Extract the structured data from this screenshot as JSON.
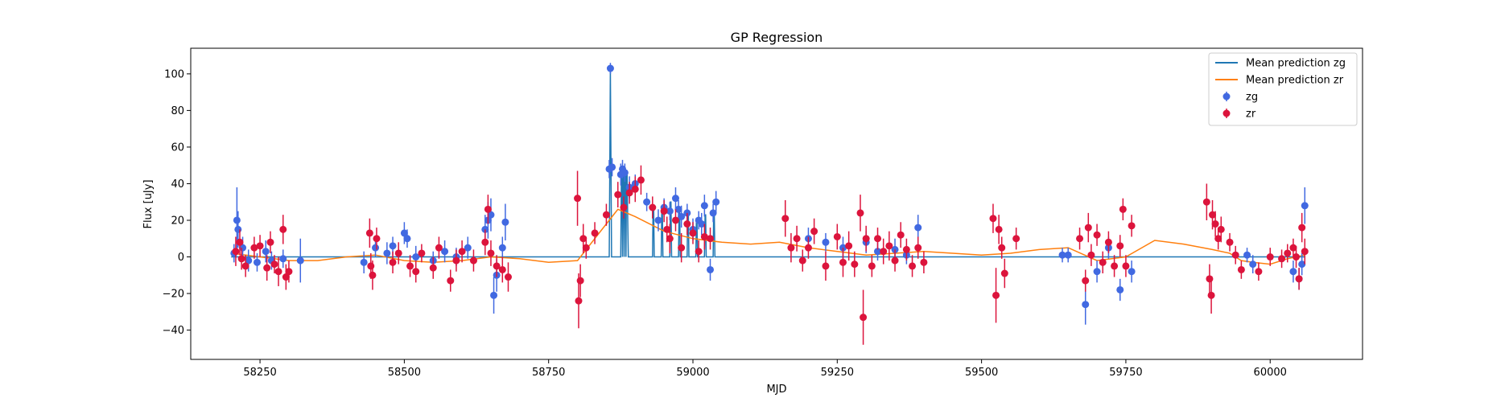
{
  "chart_data": {
    "type": "line",
    "title": "GP Regression",
    "xlabel": "MJD",
    "ylabel": "Flux [uJy]",
    "xlim": [
      58130,
      60160
    ],
    "ylim": [
      -56,
      114
    ],
    "xticks": [
      58250,
      58500,
      58750,
      59000,
      59250,
      59500,
      59750,
      60000
    ],
    "yticks": [
      -40,
      -20,
      0,
      20,
      40,
      60,
      80,
      100
    ],
    "grid": false,
    "legend_placement": "top-right",
    "colors": {
      "mean_zg": "#1f77b4",
      "mean_zr": "#ff7f0e",
      "zg": "#4169e1",
      "zr": "#dc143c"
    },
    "legend": [
      {
        "label": "Mean prediction zg",
        "kind": "line",
        "color": "#1f77b4"
      },
      {
        "label": "Mean prediction zr",
        "kind": "line",
        "color": "#ff7f0e"
      },
      {
        "label": "zg",
        "kind": "marker",
        "color": "#4169e1"
      },
      {
        "label": "zr",
        "kind": "marker",
        "color": "#dc143c"
      }
    ],
    "series": [
      {
        "name": "Mean prediction zg",
        "kind": "line",
        "x": [
          58200,
          58855,
          58856,
          58857,
          58858,
          58859,
          58860,
          58875,
          58876,
          58877,
          58878,
          58879,
          58880,
          58881,
          58882,
          58883,
          58884,
          58885,
          58886,
          58887,
          58888,
          58930,
          58931,
          58932,
          58933,
          58934,
          58945,
          58946,
          58947,
          58948,
          58949,
          58960,
          58961,
          58962,
          58963,
          58964,
          58975,
          58976,
          58977,
          58978,
          58979,
          58990,
          58991,
          58992,
          58993,
          58994,
          59005,
          59006,
          59007,
          59008,
          59009,
          59020,
          59021,
          59022,
          59023,
          59024,
          59035,
          59036,
          59037,
          59038,
          59039,
          60060
        ],
        "y": [
          0,
          0,
          48,
          103,
          48,
          0,
          0,
          0,
          45,
          45,
          0,
          47,
          47,
          0,
          45,
          45,
          0,
          46,
          46,
          20,
          0,
          0,
          28,
          28,
          0,
          0,
          0,
          27,
          27,
          0,
          0,
          0,
          30,
          30,
          0,
          0,
          0,
          27,
          27,
          0,
          0,
          0,
          24,
          24,
          0,
          0,
          0,
          21,
          21,
          0,
          0,
          0,
          23,
          23,
          0,
          0,
          0,
          25,
          25,
          0,
          0,
          0
        ]
      },
      {
        "name": "Mean prediction zr",
        "kind": "line",
        "x": [
          58200,
          58250,
          58300,
          58350,
          58400,
          58450,
          58500,
          58550,
          58600,
          58650,
          58700,
          58750,
          58800,
          58840,
          58870,
          58900,
          58950,
          59000,
          59050,
          59100,
          59150,
          59200,
          59250,
          59300,
          59350,
          59400,
          59450,
          59500,
          59550,
          59600,
          59650,
          59700,
          59750,
          59800,
          59850,
          59900,
          59930,
          59950,
          59970,
          60000,
          60030,
          60060
        ],
        "y": [
          2,
          0,
          -2,
          -2,
          0,
          1,
          -2,
          -3,
          -2,
          0,
          -1,
          -3,
          -2,
          14,
          26,
          22,
          14,
          10,
          8,
          7,
          8,
          5,
          3,
          1,
          2,
          3,
          2,
          1,
          2,
          4,
          5,
          -2,
          0,
          9,
          7,
          4,
          2,
          -2,
          -3,
          -4,
          -1,
          1
        ]
      },
      {
        "name": "zg",
        "kind": "errorbar",
        "points": [
          [
            58205,
            2,
            5
          ],
          [
            58210,
            20,
            18
          ],
          [
            58212,
            15,
            10
          ],
          [
            58220,
            5,
            6
          ],
          [
            58230,
            -2,
            6
          ],
          [
            58245,
            -3,
            5
          ],
          [
            58260,
            3,
            6
          ],
          [
            58270,
            -2,
            5
          ],
          [
            58290,
            -1,
            5
          ],
          [
            58320,
            -2,
            12
          ],
          [
            58430,
            -3,
            6
          ],
          [
            58450,
            5,
            5
          ],
          [
            58470,
            2,
            6
          ],
          [
            58480,
            6,
            5
          ],
          [
            58500,
            13,
            6
          ],
          [
            58505,
            10,
            5
          ],
          [
            58520,
            0,
            6
          ],
          [
            58550,
            -2,
            5
          ],
          [
            58570,
            3,
            6
          ],
          [
            58590,
            0,
            5
          ],
          [
            58610,
            5,
            6
          ],
          [
            58640,
            15,
            8
          ],
          [
            58645,
            20,
            10
          ],
          [
            58650,
            23,
            9
          ],
          [
            58655,
            -21,
            10
          ],
          [
            58660,
            -10,
            9
          ],
          [
            58670,
            5,
            6
          ],
          [
            58675,
            19,
            10
          ],
          [
            58855,
            48,
            5
          ],
          [
            58857,
            103,
            3
          ],
          [
            58860,
            49,
            5
          ],
          [
            58875,
            45,
            6
          ],
          [
            58878,
            48,
            5
          ],
          [
            58882,
            46,
            5
          ],
          [
            58890,
            38,
            6
          ],
          [
            58900,
            40,
            5
          ],
          [
            58920,
            30,
            5
          ],
          [
            58940,
            20,
            6
          ],
          [
            58950,
            27,
            5
          ],
          [
            58960,
            25,
            5
          ],
          [
            58970,
            32,
            6
          ],
          [
            58975,
            26,
            5
          ],
          [
            58980,
            22,
            6
          ],
          [
            58990,
            24,
            5
          ],
          [
            59000,
            15,
            6
          ],
          [
            59010,
            20,
            5
          ],
          [
            59015,
            18,
            6
          ],
          [
            59020,
            28,
            6
          ],
          [
            59030,
            -7,
            6
          ],
          [
            59035,
            24,
            5
          ],
          [
            59040,
            30,
            6
          ],
          [
            59200,
            10,
            6
          ],
          [
            59230,
            8,
            5
          ],
          [
            59260,
            5,
            6
          ],
          [
            59300,
            8,
            6
          ],
          [
            59320,
            3,
            5
          ],
          [
            59350,
            4,
            6
          ],
          [
            59370,
            1,
            5
          ],
          [
            59390,
            16,
            7
          ],
          [
            59640,
            1,
            4
          ],
          [
            59650,
            1,
            4
          ],
          [
            59680,
            -26,
            11
          ],
          [
            59700,
            -8,
            6
          ],
          [
            59720,
            5,
            6
          ],
          [
            59740,
            -18,
            6
          ],
          [
            59760,
            -8,
            6
          ],
          [
            59960,
            1,
            4
          ],
          [
            59970,
            -4,
            5
          ],
          [
            60040,
            -8,
            6
          ],
          [
            60050,
            -12,
            6
          ],
          [
            60055,
            -4,
            6
          ],
          [
            60060,
            28,
            10
          ]
        ]
      },
      {
        "name": "zr",
        "kind": "errorbar",
        "points": [
          [
            58208,
            3,
            8
          ],
          [
            58215,
            8,
            7
          ],
          [
            58218,
            -1,
            6
          ],
          [
            58225,
            -5,
            6
          ],
          [
            58240,
            5,
            6
          ],
          [
            58250,
            6,
            6
          ],
          [
            58262,
            -6,
            7
          ],
          [
            58268,
            8,
            6
          ],
          [
            58275,
            -4,
            5
          ],
          [
            58282,
            -8,
            8
          ],
          [
            58290,
            15,
            8
          ],
          [
            58295,
            -11,
            7
          ],
          [
            58300,
            -8,
            6
          ],
          [
            58440,
            13,
            8
          ],
          [
            58442,
            -5,
            7
          ],
          [
            58445,
            -10,
            8
          ],
          [
            58452,
            10,
            6
          ],
          [
            58480,
            -3,
            6
          ],
          [
            58490,
            2,
            6
          ],
          [
            58510,
            -5,
            6
          ],
          [
            58520,
            -8,
            6
          ],
          [
            58530,
            2,
            5
          ],
          [
            58550,
            -6,
            6
          ],
          [
            58560,
            5,
            6
          ],
          [
            58580,
            -13,
            6
          ],
          [
            58590,
            -2,
            6
          ],
          [
            58600,
            3,
            6
          ],
          [
            58620,
            -2,
            6
          ],
          [
            58640,
            8,
            7
          ],
          [
            58645,
            26,
            8
          ],
          [
            58650,
            2,
            7
          ],
          [
            58660,
            -5,
            6
          ],
          [
            58670,
            -7,
            7
          ],
          [
            58680,
            -11,
            8
          ],
          [
            58800,
            32,
            15
          ],
          [
            58802,
            -24,
            15
          ],
          [
            58805,
            -13,
            9
          ],
          [
            58810,
            10,
            8
          ],
          [
            58815,
            5,
            6
          ],
          [
            58830,
            13,
            6
          ],
          [
            58850,
            23,
            6
          ],
          [
            58870,
            34,
            7
          ],
          [
            58880,
            27,
            6
          ],
          [
            58890,
            35,
            6
          ],
          [
            58900,
            37,
            7
          ],
          [
            58910,
            42,
            8
          ],
          [
            58930,
            27,
            6
          ],
          [
            58950,
            25,
            6
          ],
          [
            58955,
            15,
            7
          ],
          [
            58960,
            10,
            8
          ],
          [
            58970,
            20,
            6
          ],
          [
            58980,
            5,
            8
          ],
          [
            58990,
            18,
            6
          ],
          [
            59000,
            13,
            6
          ],
          [
            59010,
            3,
            6
          ],
          [
            59020,
            11,
            7
          ],
          [
            59030,
            10,
            6
          ],
          [
            59160,
            21,
            10
          ],
          [
            59170,
            5,
            8
          ],
          [
            59180,
            10,
            7
          ],
          [
            59190,
            -2,
            6
          ],
          [
            59200,
            5,
            6
          ],
          [
            59210,
            14,
            7
          ],
          [
            59230,
            -5,
            8
          ],
          [
            59250,
            11,
            7
          ],
          [
            59260,
            -3,
            8
          ],
          [
            59270,
            6,
            8
          ],
          [
            59280,
            -4,
            7
          ],
          [
            59290,
            24,
            10
          ],
          [
            59295,
            -33,
            15
          ],
          [
            59300,
            10,
            7
          ],
          [
            59310,
            -5,
            6
          ],
          [
            59320,
            10,
            6
          ],
          [
            59330,
            3,
            7
          ],
          [
            59340,
            6,
            8
          ],
          [
            59350,
            -2,
            6
          ],
          [
            59360,
            12,
            7
          ],
          [
            59370,
            4,
            6
          ],
          [
            59380,
            -5,
            6
          ],
          [
            59390,
            5,
            6
          ],
          [
            59400,
            -3,
            6
          ],
          [
            59520,
            21,
            8
          ],
          [
            59525,
            -21,
            15
          ],
          [
            59530,
            15,
            8
          ],
          [
            59535,
            5,
            6
          ],
          [
            59540,
            -9,
            8
          ],
          [
            59560,
            10,
            6
          ],
          [
            59670,
            10,
            6
          ],
          [
            59680,
            -13,
            6
          ],
          [
            59685,
            16,
            8
          ],
          [
            59690,
            1,
            6
          ],
          [
            59700,
            12,
            6
          ],
          [
            59710,
            -3,
            6
          ],
          [
            59720,
            8,
            6
          ],
          [
            59730,
            -5,
            6
          ],
          [
            59740,
            6,
            6
          ],
          [
            59745,
            26,
            6
          ],
          [
            59750,
            -5,
            6
          ],
          [
            59760,
            17,
            6
          ],
          [
            59890,
            30,
            10
          ],
          [
            59895,
            -12,
            8
          ],
          [
            59898,
            -21,
            10
          ],
          [
            59900,
            23,
            8
          ],
          [
            59905,
            18,
            7
          ],
          [
            59910,
            10,
            6
          ],
          [
            59915,
            15,
            7
          ],
          [
            59930,
            8,
            5
          ],
          [
            59940,
            1,
            5
          ],
          [
            59950,
            -7,
            5
          ],
          [
            59980,
            -8,
            5
          ],
          [
            60000,
            0,
            5
          ],
          [
            60020,
            -1,
            5
          ],
          [
            60030,
            2,
            5
          ],
          [
            60040,
            5,
            5
          ],
          [
            60045,
            0,
            6
          ],
          [
            60050,
            -12,
            6
          ],
          [
            60055,
            16,
            8
          ],
          [
            60060,
            3,
            7
          ]
        ]
      }
    ]
  }
}
